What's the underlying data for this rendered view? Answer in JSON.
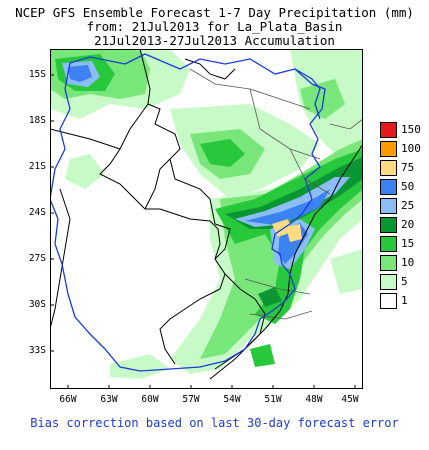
{
  "title": {
    "line1": "NCEP GFS Ensemble Forecast 1-7 Day Precipitation (mm)",
    "line2": "from: 21Jul2013  for La_Plata_Basin",
    "line3": "21Jul2013-27Jul2013 Accumulation"
  },
  "axes": {
    "y_labels": [
      "15S",
      "18S",
      "21S",
      "24S",
      "27S",
      "30S",
      "33S"
    ],
    "x_labels": [
      "66W",
      "63W",
      "60W",
      "57W",
      "54W",
      "51W",
      "48W",
      "45W"
    ]
  },
  "legend": {
    "items": [
      {
        "label": "150",
        "color": "#e61a1a"
      },
      {
        "label": "100",
        "color": "#ff9b00"
      },
      {
        "label": "75",
        "color": "#ffdc82"
      },
      {
        "label": "50",
        "color": "#3c82f0"
      },
      {
        "label": "25",
        "color": "#8cbef5"
      },
      {
        "label": "20",
        "color": "#0a9632"
      },
      {
        "label": "15",
        "color": "#28c83c"
      },
      {
        "label": "10",
        "color": "#78e678"
      },
      {
        "label": "5",
        "color": "#c8fac8"
      },
      {
        "label": "1",
        "color": "#ffffff"
      }
    ]
  },
  "footer": "Bias correction based on last 30-day forecast error"
}
